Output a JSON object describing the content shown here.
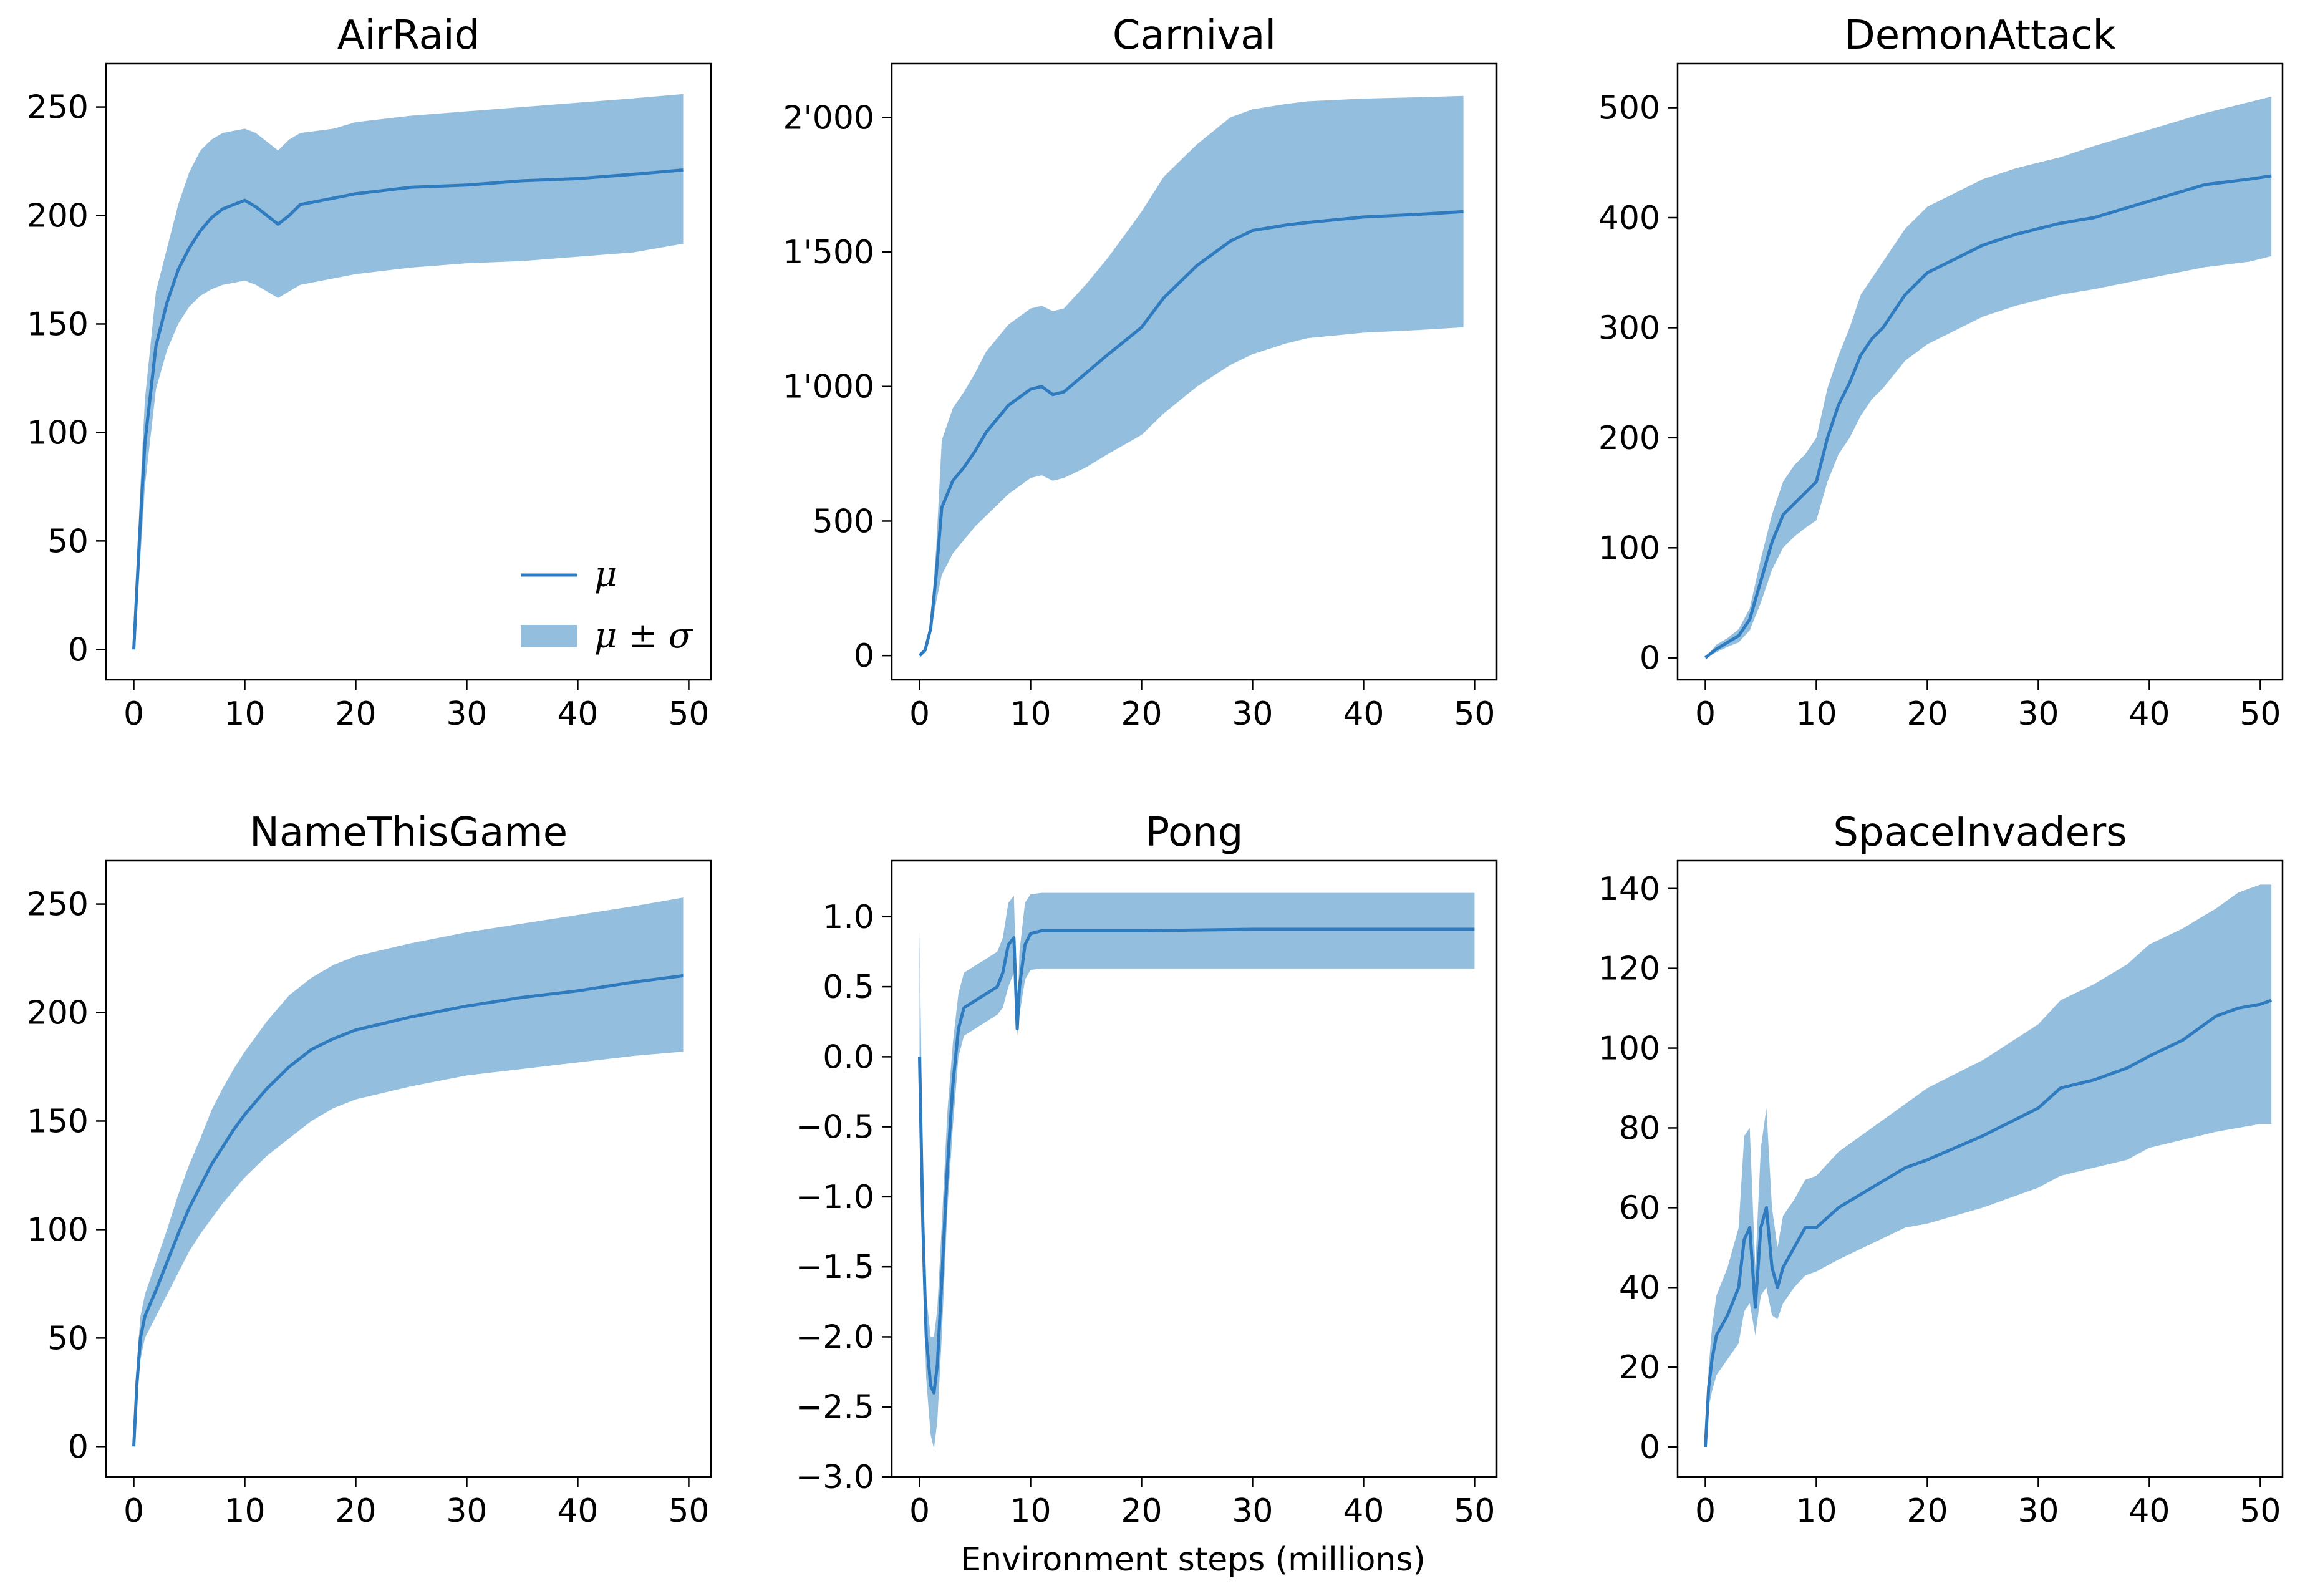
{
  "colors": {
    "line": "#2f7bbf",
    "band": "#94bedd"
  },
  "figure": {
    "xlabel": "Environment steps (millions)"
  },
  "legend": {
    "mu": "μ",
    "band": "μ ± σ"
  },
  "chart_data": [
    {
      "type": "line",
      "title": "AirRaid",
      "xlim": [
        -2.5,
        52.0
      ],
      "ylim": [
        -14,
        270
      ],
      "xticks": [
        0,
        10,
        20,
        30,
        40,
        50
      ],
      "xtick_labels": [
        "0",
        "10",
        "20",
        "30",
        "40",
        "50"
      ],
      "yticks": [
        0,
        50,
        100,
        150,
        200,
        250
      ],
      "ytick_labels": [
        "0",
        "50",
        "100",
        "150",
        "200",
        "250"
      ],
      "series": [
        {
          "x": [
            0,
            0.5,
            1,
            2,
            3,
            4,
            5,
            6,
            7,
            8,
            9,
            10,
            11,
            12,
            13,
            14,
            15,
            18,
            20,
            25,
            30,
            35,
            40,
            45,
            49.5
          ],
          "mean": [
            0,
            50,
            95,
            140,
            160,
            175,
            185,
            193,
            199,
            203,
            205,
            207,
            204,
            200,
            196,
            200,
            205,
            208,
            210,
            213,
            214,
            216,
            217,
            219,
            221
          ],
          "low": [
            0,
            35,
            75,
            120,
            138,
            150,
            158,
            163,
            166,
            168,
            169,
            170,
            168,
            165,
            162,
            165,
            168,
            171,
            173,
            176,
            178,
            179,
            181,
            183,
            187
          ],
          "high": [
            0,
            65,
            115,
            165,
            185,
            205,
            220,
            230,
            235,
            238,
            239,
            240,
            238,
            234,
            230,
            235,
            238,
            240,
            243,
            246,
            248,
            250,
            252,
            254,
            256
          ]
        }
      ],
      "legend": "lower-right"
    },
    {
      "type": "line",
      "title": "Carnival",
      "xlim": [
        -2.5,
        52.0
      ],
      "ylim": [
        -90,
        2200
      ],
      "xticks": [
        0,
        10,
        20,
        30,
        40,
        50
      ],
      "xtick_labels": [
        "0",
        "10",
        "20",
        "30",
        "40",
        "50"
      ],
      "yticks": [
        0,
        500,
        1000,
        1500,
        2000
      ],
      "ytick_labels": [
        "0",
        "500",
        "1'000",
        "1'500",
        "2'000"
      ],
      "series": [
        {
          "x": [
            0,
            0.5,
            1,
            1.5,
            2,
            3,
            4,
            5,
            6,
            7,
            8,
            9,
            10,
            11,
            12,
            13,
            15,
            17,
            20,
            22,
            25,
            28,
            30,
            33,
            35,
            40,
            45,
            49
          ],
          "mean": [
            0,
            20,
            100,
            300,
            550,
            650,
            700,
            760,
            830,
            880,
            930,
            960,
            990,
            1000,
            970,
            980,
            1050,
            1120,
            1220,
            1330,
            1450,
            1540,
            1580,
            1600,
            1610,
            1630,
            1640,
            1650
          ],
          "low": [
            0,
            10,
            80,
            200,
            300,
            380,
            430,
            480,
            520,
            560,
            600,
            630,
            660,
            670,
            650,
            660,
            700,
            750,
            820,
            900,
            1000,
            1080,
            1120,
            1160,
            1180,
            1200,
            1210,
            1220
          ],
          "high": [
            0,
            30,
            130,
            400,
            800,
            920,
            980,
            1050,
            1130,
            1180,
            1230,
            1260,
            1290,
            1300,
            1280,
            1290,
            1380,
            1480,
            1650,
            1780,
            1900,
            2000,
            2030,
            2050,
            2060,
            2070,
            2075,
            2080
          ]
        }
      ]
    },
    {
      "type": "line",
      "title": "DemonAttack",
      "xlim": [
        -2.5,
        52.0
      ],
      "ylim": [
        -20,
        540
      ],
      "xticks": [
        0,
        10,
        20,
        30,
        40,
        50
      ],
      "xtick_labels": [
        "0",
        "10",
        "20",
        "30",
        "40",
        "50"
      ],
      "yticks": [
        0,
        100,
        200,
        300,
        400,
        500
      ],
      "ytick_labels": [
        "0",
        "100",
        "200",
        "300",
        "400",
        "500"
      ],
      "series": [
        {
          "x": [
            0,
            1,
            2,
            3,
            4,
            5,
            6,
            7,
            8,
            9,
            10,
            11,
            12,
            13,
            14,
            15,
            16,
            18,
            20,
            22,
            25,
            28,
            30,
            32,
            35,
            40,
            45,
            49,
            51
          ],
          "mean": [
            0,
            8,
            14,
            20,
            35,
            70,
            105,
            130,
            140,
            150,
            160,
            200,
            230,
            250,
            275,
            290,
            300,
            330,
            350,
            360,
            375,
            385,
            390,
            395,
            400,
            415,
            430,
            435,
            438
          ],
          "low": [
            0,
            5,
            10,
            14,
            25,
            50,
            80,
            100,
            110,
            118,
            125,
            160,
            185,
            200,
            220,
            235,
            245,
            270,
            285,
            295,
            310,
            320,
            325,
            330,
            335,
            345,
            355,
            360,
            365
          ],
          "high": [
            0,
            12,
            18,
            26,
            45,
            90,
            130,
            160,
            175,
            185,
            200,
            245,
            275,
            300,
            330,
            345,
            360,
            390,
            410,
            420,
            435,
            445,
            450,
            455,
            465,
            480,
            495,
            505,
            510
          ]
        }
      ]
    },
    {
      "type": "line",
      "title": "NameThisGame",
      "xlim": [
        -2.5,
        52.0
      ],
      "ylim": [
        -14,
        270
      ],
      "xticks": [
        0,
        10,
        20,
        30,
        40,
        50
      ],
      "xtick_labels": [
        "0",
        "10",
        "20",
        "30",
        "40",
        "50"
      ],
      "yticks": [
        0,
        50,
        100,
        150,
        200,
        250
      ],
      "ytick_labels": [
        "0",
        "50",
        "100",
        "150",
        "200",
        "250"
      ],
      "series": [
        {
          "x": [
            0,
            0.3,
            0.6,
            1,
            2,
            3,
            4,
            5,
            6,
            7,
            8,
            9,
            10,
            12,
            14,
            16,
            18,
            20,
            25,
            30,
            35,
            40,
            45,
            49.5
          ],
          "mean": [
            0,
            30,
            50,
            60,
            72,
            85,
            98,
            110,
            120,
            130,
            138,
            146,
            153,
            165,
            175,
            183,
            188,
            192,
            198,
            203,
            207,
            210,
            214,
            217
          ],
          "low": [
            0,
            20,
            40,
            50,
            60,
            70,
            80,
            90,
            98,
            105,
            112,
            118,
            124,
            134,
            142,
            150,
            156,
            160,
            166,
            171,
            174,
            177,
            180,
            182
          ],
          "high": [
            0,
            40,
            60,
            70,
            85,
            100,
            116,
            130,
            142,
            155,
            165,
            174,
            182,
            196,
            208,
            216,
            222,
            226,
            232,
            237,
            241,
            245,
            249,
            253
          ]
        }
      ]
    },
    {
      "type": "line",
      "title": "Pong",
      "xlim": [
        -2.5,
        52.0
      ],
      "ylim": [
        -3.0,
        1.4
      ],
      "xticks": [
        0,
        10,
        20,
        30,
        40,
        50
      ],
      "xtick_labels": [
        "0",
        "10",
        "20",
        "30",
        "40",
        "50"
      ],
      "yticks": [
        -3.0,
        -2.5,
        -2.0,
        -1.5,
        -1.0,
        -0.5,
        0.0,
        0.5,
        1.0
      ],
      "ytick_labels": [
        "−3.0",
        "−2.5",
        "−2.0",
        "−1.5",
        "−1.0",
        "−0.5",
        "0.0",
        "0.5",
        "1.0"
      ],
      "series": [
        {
          "x": [
            0,
            0.3,
            0.6,
            1,
            1.3,
            1.6,
            2,
            2.5,
            3,
            3.5,
            4,
            5,
            6,
            7,
            7.5,
            8,
            8.5,
            8.8,
            9,
            9.5,
            10,
            11,
            15,
            20,
            30,
            40,
            50
          ],
          "mean": [
            0.0,
            -1.2,
            -2.0,
            -2.35,
            -2.4,
            -2.2,
            -1.6,
            -0.8,
            -0.2,
            0.2,
            0.35,
            0.4,
            0.45,
            0.5,
            0.6,
            0.8,
            0.85,
            0.2,
            0.5,
            0.8,
            0.88,
            0.9,
            0.9,
            0.9,
            0.91,
            0.91,
            0.91
          ],
          "low": [
            0.0,
            -1.5,
            -2.3,
            -2.7,
            -2.8,
            -2.6,
            -2.0,
            -1.1,
            -0.5,
            0.0,
            0.15,
            0.2,
            0.25,
            0.3,
            0.35,
            0.5,
            0.6,
            0.15,
            0.3,
            0.55,
            0.62,
            0.63,
            0.63,
            0.63,
            0.63,
            0.63,
            0.63
          ],
          "high": [
            0.9,
            -0.8,
            -1.7,
            -2.0,
            -2.0,
            -1.8,
            -1.2,
            -0.4,
            0.1,
            0.45,
            0.6,
            0.65,
            0.7,
            0.75,
            0.85,
            1.1,
            1.15,
            0.25,
            0.75,
            1.1,
            1.16,
            1.17,
            1.17,
            1.17,
            1.17,
            1.17,
            1.17
          ]
        }
      ]
    },
    {
      "type": "line",
      "title": "SpaceInvaders",
      "xlim": [
        -2.5,
        52.0
      ],
      "ylim": [
        -7.5,
        147
      ],
      "xticks": [
        0,
        10,
        20,
        30,
        40,
        50
      ],
      "xtick_labels": [
        "0",
        "10",
        "20",
        "30",
        "40",
        "50"
      ],
      "yticks": [
        0,
        20,
        40,
        60,
        80,
        100,
        120,
        140
      ],
      "ytick_labels": [
        "0",
        "20",
        "40",
        "60",
        "80",
        "100",
        "120",
        "140"
      ],
      "series": [
        {
          "x": [
            0,
            0.3,
            0.6,
            1,
            2,
            3,
            3.5,
            4,
            4.5,
            5,
            5.5,
            6,
            6.5,
            7,
            8,
            9,
            10,
            12,
            15,
            18,
            20,
            25,
            30,
            32,
            35,
            38,
            40,
            43,
            46,
            48,
            50,
            51
          ],
          "mean": [
            0,
            15,
            22,
            28,
            33,
            40,
            52,
            55,
            35,
            55,
            60,
            45,
            40,
            45,
            50,
            55,
            55,
            60,
            65,
            70,
            72,
            78,
            85,
            90,
            92,
            95,
            98,
            102,
            108,
            110,
            111,
            112
          ],
          "low": [
            0,
            10,
            14,
            18,
            22,
            26,
            34,
            36,
            28,
            38,
            40,
            33,
            32,
            36,
            40,
            43,
            44,
            47,
            51,
            55,
            56,
            60,
            65,
            68,
            70,
            72,
            75,
            77,
            79,
            80,
            81,
            81
          ],
          "high": [
            0,
            20,
            30,
            38,
            45,
            55,
            78,
            80,
            45,
            75,
            85,
            60,
            50,
            58,
            62,
            67,
            68,
            74,
            80,
            86,
            90,
            97,
            106,
            112,
            116,
            121,
            126,
            130,
            135,
            139,
            141,
            141
          ]
        }
      ]
    }
  ]
}
